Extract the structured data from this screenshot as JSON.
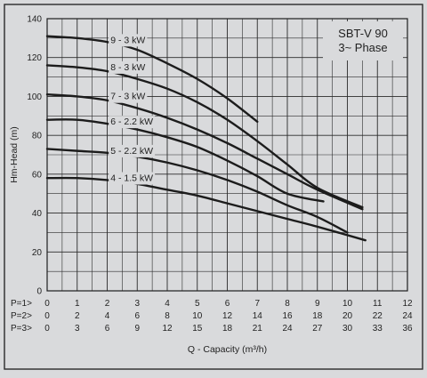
{
  "chart_data": {
    "type": "line",
    "ylabel": "Hm-Head (m)",
    "xlabel": "Q - Capacity (m³/h)",
    "info_lines": [
      "SBT-V 90",
      "3~ Phase"
    ],
    "x_scale_label": "P=1>",
    "x_axes": [
      {
        "label": "P=1>",
        "ticks": [
          "0",
          "1",
          "2",
          "3",
          "4",
          "5",
          "6",
          "7",
          "8",
          "9",
          "10",
          "11",
          "12"
        ]
      },
      {
        "label": "P=2>",
        "ticks": [
          "0",
          "2",
          "4",
          "6",
          "8",
          "10",
          "12",
          "14",
          "16",
          "18",
          "20",
          "22",
          "24"
        ]
      },
      {
        "label": "P=3>",
        "ticks": [
          "0",
          "3",
          "6",
          "9",
          "12",
          "15",
          "18",
          "21",
          "24",
          "27",
          "30",
          "33",
          "36"
        ]
      }
    ],
    "xlim": [
      0,
      12
    ],
    "ylim": [
      0,
      140
    ],
    "y_ticks": [
      "0",
      "20",
      "40",
      "60",
      "80",
      "100",
      "120",
      "140"
    ],
    "grid": true,
    "series": [
      {
        "name": "9 - 3 kW",
        "label_at": [
          2.05,
          127.5
        ],
        "x": [
          0,
          1,
          2,
          3,
          4,
          5,
          6,
          7
        ],
        "y": [
          131,
          130,
          128,
          124,
          117,
          109,
          99,
          87
        ]
      },
      {
        "name": "8 - 3 kW",
        "label_at": [
          2.05,
          113.5
        ],
        "x": [
          0,
          1,
          2,
          3,
          4,
          5,
          6,
          7,
          8,
          9,
          10.5
        ],
        "y": [
          116,
          115,
          113,
          109,
          104,
          97,
          88,
          77,
          65,
          53,
          43
        ]
      },
      {
        "name": "7 - 3 kW",
        "label_at": [
          2.05,
          98.5
        ],
        "x": [
          0,
          1,
          2,
          3,
          4,
          5,
          6,
          7,
          8,
          9,
          10.5
        ],
        "y": [
          101,
          100,
          98,
          94,
          89,
          83,
          76,
          68,
          60,
          52,
          42
        ]
      },
      {
        "name": "6 - 2.2 kW",
        "label_at": [
          2.05,
          85.5
        ],
        "x": [
          0,
          1,
          2,
          3,
          4,
          5,
          6,
          7,
          8,
          9.2
        ],
        "y": [
          88,
          88,
          86,
          83,
          79,
          74,
          67,
          59,
          50,
          46
        ]
      },
      {
        "name": "5 - 2.2 kW",
        "label_at": [
          2.05,
          70.5
        ],
        "x": [
          0,
          1,
          2,
          3,
          4,
          5,
          6,
          7,
          8,
          9,
          10
        ],
        "y": [
          73,
          72,
          71,
          69,
          66,
          62,
          57,
          51,
          44,
          38,
          30
        ]
      },
      {
        "name": "4 - 1.5 kW",
        "label_at": [
          2.05,
          56.5
        ],
        "x": [
          0,
          1,
          2,
          3,
          4,
          5,
          6,
          7,
          8,
          9,
          10.6
        ],
        "y": [
          58,
          58,
          57,
          55,
          52,
          49,
          45,
          41,
          37,
          33,
          26
        ]
      }
    ]
  }
}
